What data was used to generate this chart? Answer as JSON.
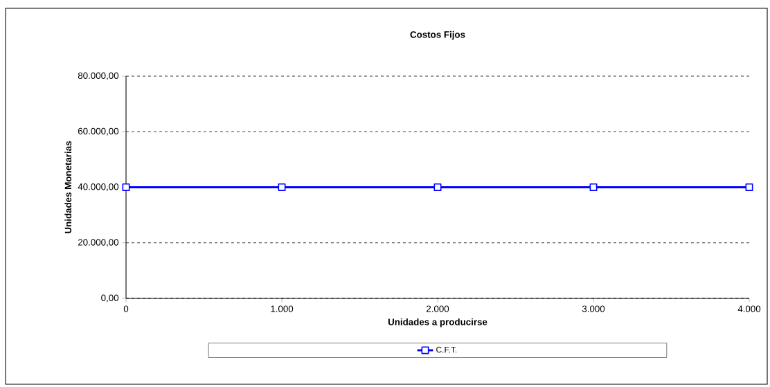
{
  "chart_data": {
    "type": "line",
    "title": "Costos Fijos",
    "xlabel": "Unidades a producirse",
    "ylabel": "Unidades Monetarias",
    "x": [
      0,
      1000,
      2000,
      3000,
      4000
    ],
    "series": [
      {
        "name": "C.F.T.",
        "color": "#0000ff",
        "values": [
          40000,
          40000,
          40000,
          40000,
          40000
        ]
      }
    ],
    "xlim": [
      0,
      4000
    ],
    "ylim": [
      0,
      80000
    ],
    "xticks": [
      0,
      {
        "value": 1000,
        "label": "1.000"
      },
      {
        "value": 2000,
        "label": "2.000"
      },
      {
        "value": 3000,
        "label": "3.000"
      },
      {
        "value": 4000,
        "label": "4.000"
      }
    ],
    "yticks": [
      {
        "value": 0,
        "label": "0,00"
      },
      {
        "value": 20000,
        "label": "20.000,00"
      },
      {
        "value": 40000,
        "label": "40.000,00"
      },
      {
        "value": 60000,
        "label": "60.000,00"
      },
      {
        "value": 80000,
        "label": "80.000,00"
      }
    ],
    "grid": "y",
    "legend": "bottom",
    "marker": "square",
    "line_style": "solid"
  }
}
